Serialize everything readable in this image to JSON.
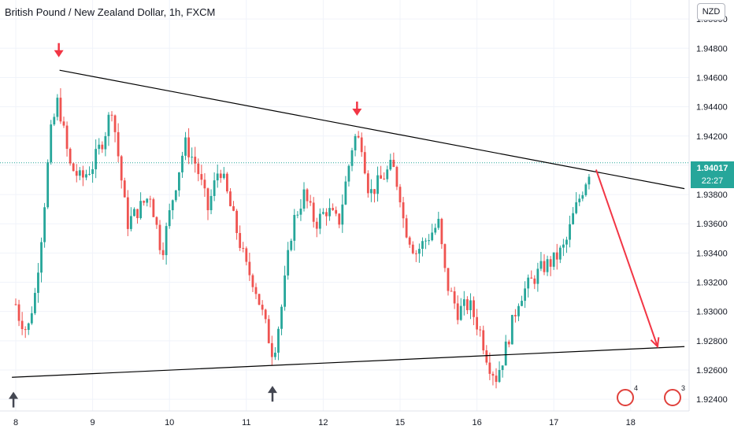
{
  "header": {
    "title": "British Pound / New Zealand Dollar, 1h, FXCM",
    "currency_label": "NZD"
  },
  "price_tag": {
    "price": "1.94017",
    "countdown": "22:27"
  },
  "badges": [
    {
      "icon": "earnings-icon",
      "count": "4"
    },
    {
      "icon": "uk-flag-icon",
      "count": "3"
    }
  ],
  "colors": {
    "up": "#26a69a",
    "down": "#ef5350",
    "trendline": "#000000",
    "arrow_red": "#f23645",
    "arrow_gray": "#434651"
  },
  "chart_data": {
    "type": "candlestick",
    "title": "British Pound / New Zealand Dollar, 1h, FXCM",
    "ylim": [
      1.9232,
      1.9513
    ],
    "y_ticks": [
      "1.95000",
      "1.94800",
      "1.94600",
      "1.94400",
      "1.94200",
      "1.94000",
      "1.93800",
      "1.93600",
      "1.93400",
      "1.93200",
      "1.93000",
      "1.92800",
      "1.92600",
      "1.92400"
    ],
    "x_ticks": [
      "8",
      "9",
      "10",
      "11",
      "12",
      "15",
      "16",
      "17",
      "18"
    ],
    "grid": true,
    "current_price": 1.94017,
    "price_path": [
      [
        0,
        1.9305
      ],
      [
        0.05,
        1.9295
      ],
      [
        0.1,
        1.9292
      ],
      [
        0.15,
        1.9285
      ],
      [
        0.2,
        1.93
      ],
      [
        0.25,
        1.9312
      ],
      [
        0.35,
        1.936
      ],
      [
        0.45,
        1.942
      ],
      [
        0.55,
        1.9445
      ],
      [
        0.7,
        1.94
      ],
      [
        0.85,
        1.939
      ],
      [
        1.0,
        1.94
      ],
      [
        1.15,
        1.942
      ],
      [
        1.25,
        1.944
      ],
      [
        1.35,
        1.94
      ],
      [
        1.45,
        1.936
      ],
      [
        1.6,
        1.937
      ],
      [
        1.75,
        1.938
      ],
      [
        1.9,
        1.934
      ],
      [
        2.05,
        1.938
      ],
      [
        2.2,
        1.9415
      ],
      [
        2.35,
        1.94
      ],
      [
        2.5,
        1.937
      ],
      [
        2.65,
        1.94
      ],
      [
        2.85,
        1.936
      ],
      [
        3.0,
        1.933
      ],
      [
        3.1,
        1.932
      ],
      [
        3.2,
        1.93
      ],
      [
        3.35,
        1.927
      ],
      [
        3.45,
        1.93
      ],
      [
        3.6,
        1.936
      ],
      [
        3.75,
        1.938
      ],
      [
        3.9,
        1.936
      ],
      [
        4.05,
        1.937
      ],
      [
        4.2,
        1.936
      ],
      [
        4.3,
        1.939
      ],
      [
        4.4,
        1.942
      ],
      [
        4.5,
        1.9415
      ],
      [
        4.6,
        1.938
      ],
      [
        4.75,
        1.939
      ],
      [
        4.9,
        1.94
      ],
      [
        5.0,
        1.938
      ],
      [
        5.05,
        1.936
      ],
      [
        5.2,
        1.934
      ],
      [
        5.35,
        1.935
      ],
      [
        5.5,
        1.936
      ],
      [
        5.6,
        1.932
      ],
      [
        5.75,
        1.93
      ],
      [
        5.9,
        1.9305
      ],
      [
        6.05,
        1.9285
      ],
      [
        6.15,
        1.9265
      ],
      [
        6.25,
        1.9255
      ],
      [
        6.35,
        1.927
      ],
      [
        6.45,
        1.929
      ],
      [
        6.55,
        1.931
      ],
      [
        6.7,
        1.932
      ],
      [
        6.85,
        1.933
      ],
      [
        7.0,
        1.9335
      ],
      [
        7.15,
        1.9345
      ],
      [
        7.25,
        1.9365
      ],
      [
        7.35,
        1.938
      ],
      [
        7.45,
        1.9395
      ],
      [
        7.5,
        1.94017
      ]
    ],
    "trendlines": [
      {
        "name": "upper",
        "from": [
          0.57,
          1.9465
        ],
        "to": [
          8.7,
          1.9384
        ]
      },
      {
        "name": "lower",
        "from": [
          -0.05,
          1.9255
        ],
        "to": [
          8.7,
          1.9276
        ]
      }
    ],
    "projection": {
      "from": [
        7.55,
        1.9397
      ],
      "to": [
        8.35,
        1.9276
      ]
    },
    "markers": [
      {
        "type": "down-arrow",
        "x": 0.56,
        "y": 1.9476
      },
      {
        "type": "down-arrow",
        "x": 4.44,
        "y": 1.9436
      },
      {
        "type": "up-arrow",
        "x": -0.03,
        "y": 1.9243
      },
      {
        "type": "up-arrow",
        "x": 3.34,
        "y": 1.9247
      }
    ]
  }
}
